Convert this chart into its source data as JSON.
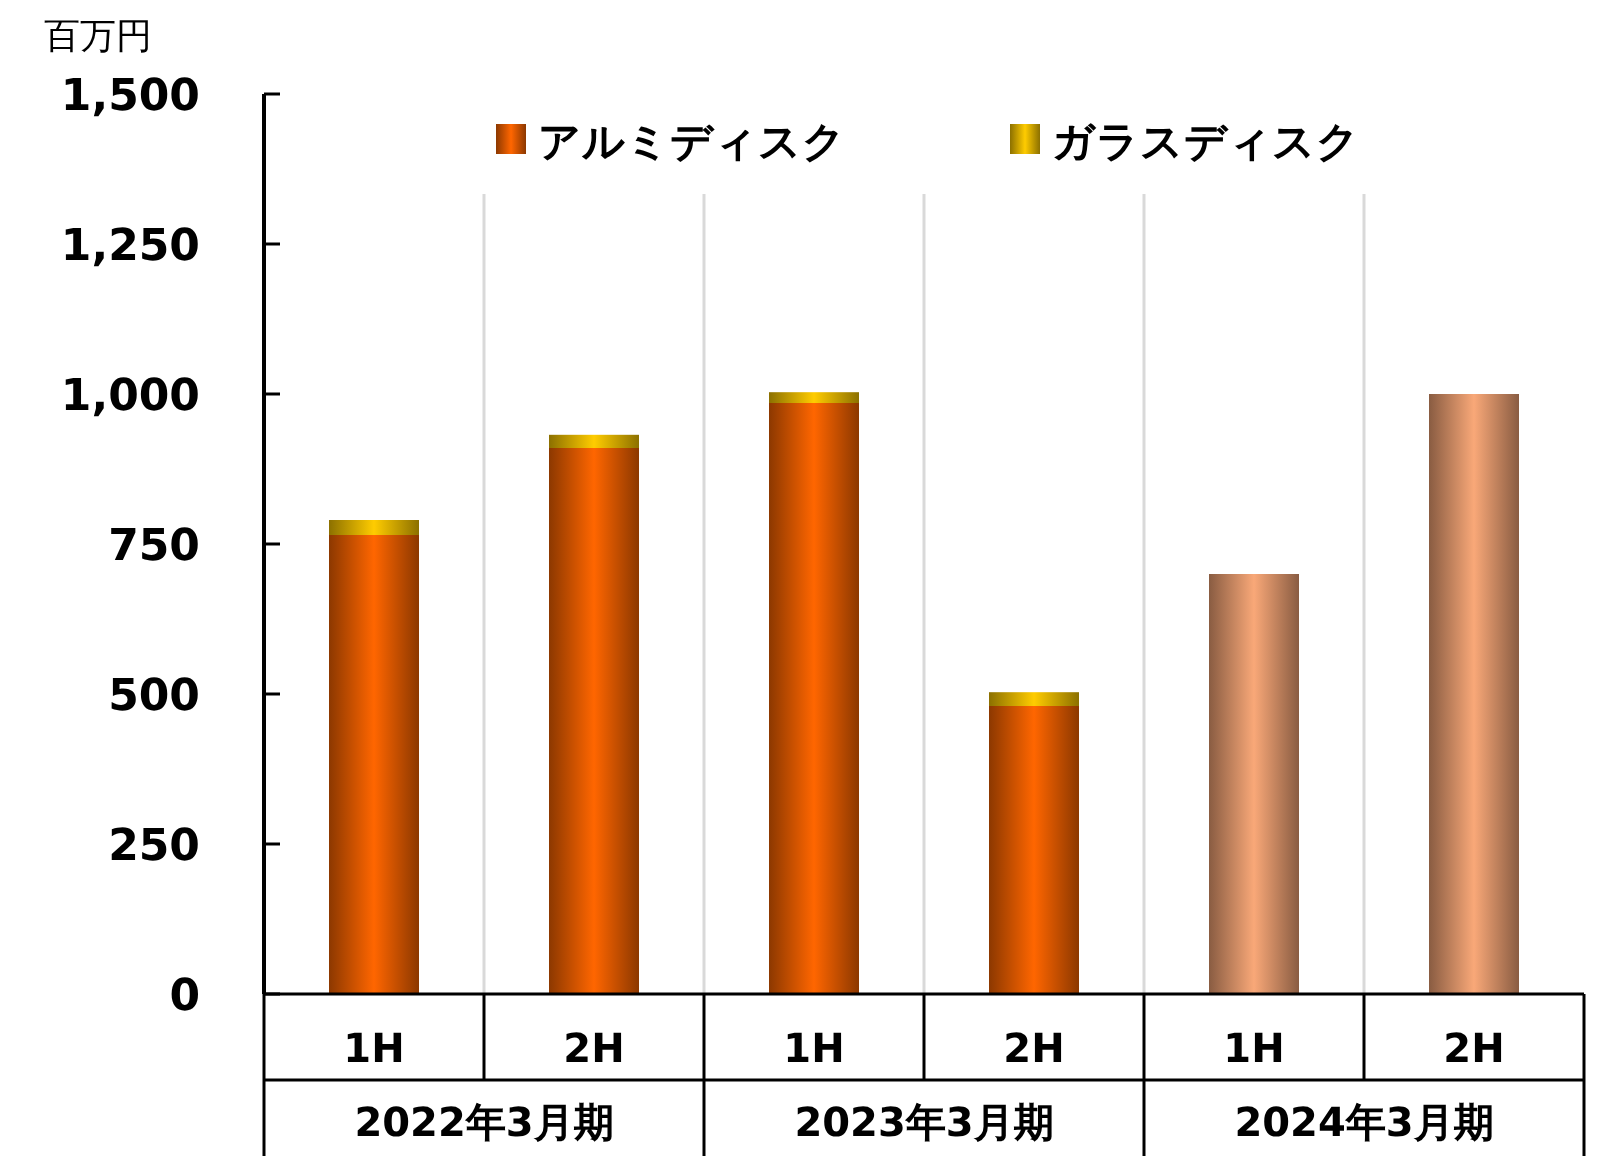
{
  "chart_data": {
    "type": "bar",
    "stacked": true,
    "ylabel": "百万円",
    "categories": [
      "1H",
      "2H",
      "1H",
      "2H",
      "1H",
      "2H"
    ],
    "series": [
      {
        "name": "アルミディスク",
        "color": "#ff6600",
        "colors": [
          "#ff6600",
          "#ff6600",
          "#ff6600",
          "#ff6600",
          "#f9a878",
          "#f9a878"
        ],
        "values": [
          765,
          910,
          985,
          480,
          700,
          1000
        ]
      },
      {
        "name": "ガラスディスク",
        "color": "#ffcc00",
        "values": [
          25,
          22,
          18,
          23,
          null,
          null
        ]
      }
    ],
    "annotations": [
      "2022年3月期",
      "2023年3月期",
      "2024年3月期"
    ],
    "ylim": [
      0,
      1500
    ],
    "yticks": [
      {
        "value": 0,
        "label": "0"
      },
      {
        "value": 250,
        "label": "250"
      },
      {
        "value": 500,
        "label": "500"
      },
      {
        "value": 750,
        "label": "750"
      },
      {
        "value": 1000,
        "label": "1,000"
      },
      {
        "value": 1250,
        "label": "1,250"
      },
      {
        "value": 1500,
        "label": "1,500"
      }
    ],
    "grid": "x",
    "legend": "top"
  }
}
